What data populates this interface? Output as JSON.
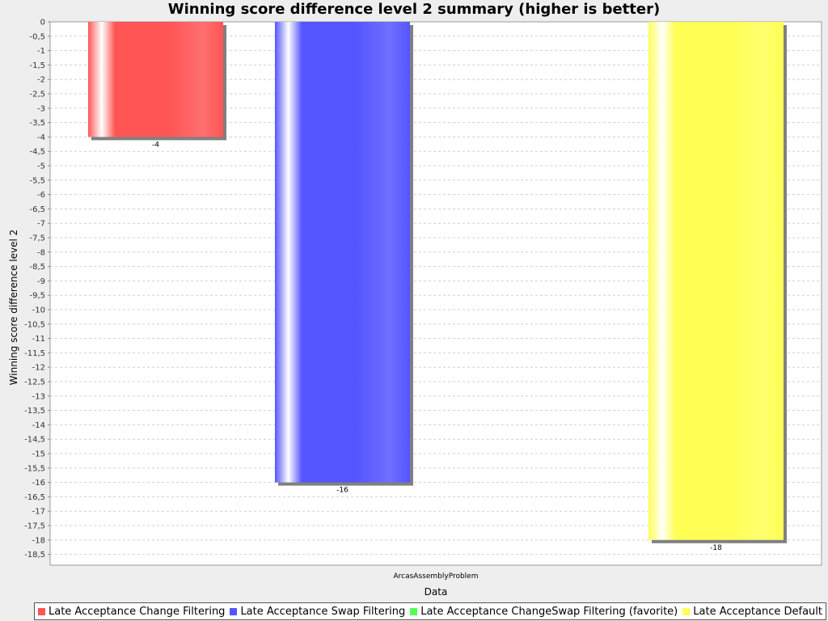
{
  "chart_data": {
    "type": "bar",
    "title": "Winning score difference level 2 summary (higher is better)",
    "xlabel": "Data",
    "ylabel": "Winning score difference level 2",
    "categories": [
      "ArcasAssemblyProblem"
    ],
    "ylim": [
      -18.85,
      0
    ],
    "ytick_step": 0.5,
    "grid": true,
    "legend_position": "bottom",
    "series": [
      {
        "name": "Late Acceptance Change Filtering",
        "values": [
          -4
        ],
        "labels": [
          "-4"
        ],
        "color": "#ff5555"
      },
      {
        "name": "Late Acceptance Swap Filtering",
        "values": [
          -16
        ],
        "labels": [
          "-16"
        ],
        "color": "#5555ff"
      },
      {
        "name": "Late Acceptance ChangeSwap Filtering (favorite)",
        "values": [
          null
        ],
        "labels": [
          ""
        ],
        "color": "#55ff55"
      },
      {
        "name": "Late Acceptance Default",
        "values": [
          -18
        ],
        "labels": [
          "-18"
        ],
        "color": "#ffff55"
      }
    ]
  }
}
